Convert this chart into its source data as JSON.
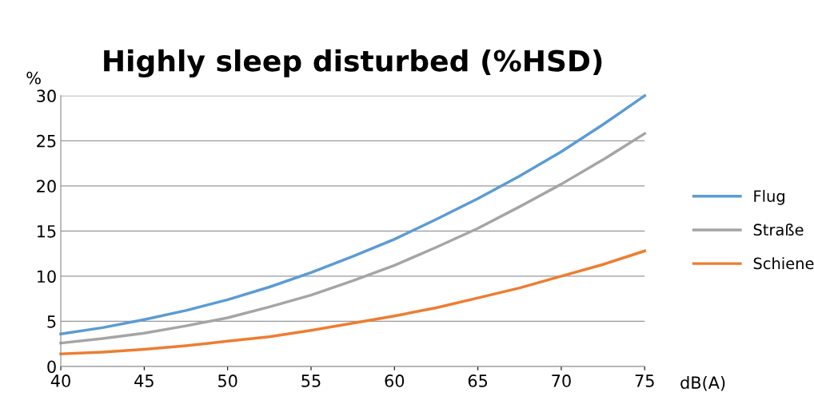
{
  "chart_data": {
    "type": "line",
    "title": "Highly sleep disturbed (%HSD)",
    "xlabel": "dB(A)",
    "ylabel": "%",
    "x": [
      40,
      42.5,
      45,
      47.5,
      50,
      52.5,
      55,
      57.5,
      60,
      62.5,
      65,
      67.5,
      70,
      72.5,
      75
    ],
    "series": [
      {
        "name": "Flug",
        "color": "#5b9bd5",
        "values": [
          3.6,
          4.3,
          5.2,
          6.2,
          7.4,
          8.8,
          10.4,
          12.2,
          14.1,
          16.3,
          18.6,
          21.1,
          23.8,
          26.8,
          30.0
        ]
      },
      {
        "name": "Straße",
        "color": "#a5a5a5",
        "values": [
          2.6,
          3.1,
          3.7,
          4.5,
          5.4,
          6.6,
          7.9,
          9.5,
          11.2,
          13.2,
          15.3,
          17.7,
          20.2,
          22.9,
          25.8
        ]
      },
      {
        "name": "Schiene",
        "color": "#ed7d31",
        "values": [
          1.4,
          1.6,
          1.9,
          2.3,
          2.8,
          3.3,
          4.0,
          4.8,
          5.6,
          6.5,
          7.6,
          8.7,
          10.0,
          11.3,
          12.8
        ]
      }
    ],
    "xlim": [
      40,
      75
    ],
    "xticks": [
      40,
      45,
      50,
      55,
      60,
      65,
      70,
      75
    ],
    "ylim": [
      0,
      30
    ],
    "yticks": [
      0,
      5,
      10,
      15,
      20,
      25,
      30
    ],
    "grid": "y",
    "legend": "right",
    "marker": "none",
    "line_style": "solid"
  }
}
